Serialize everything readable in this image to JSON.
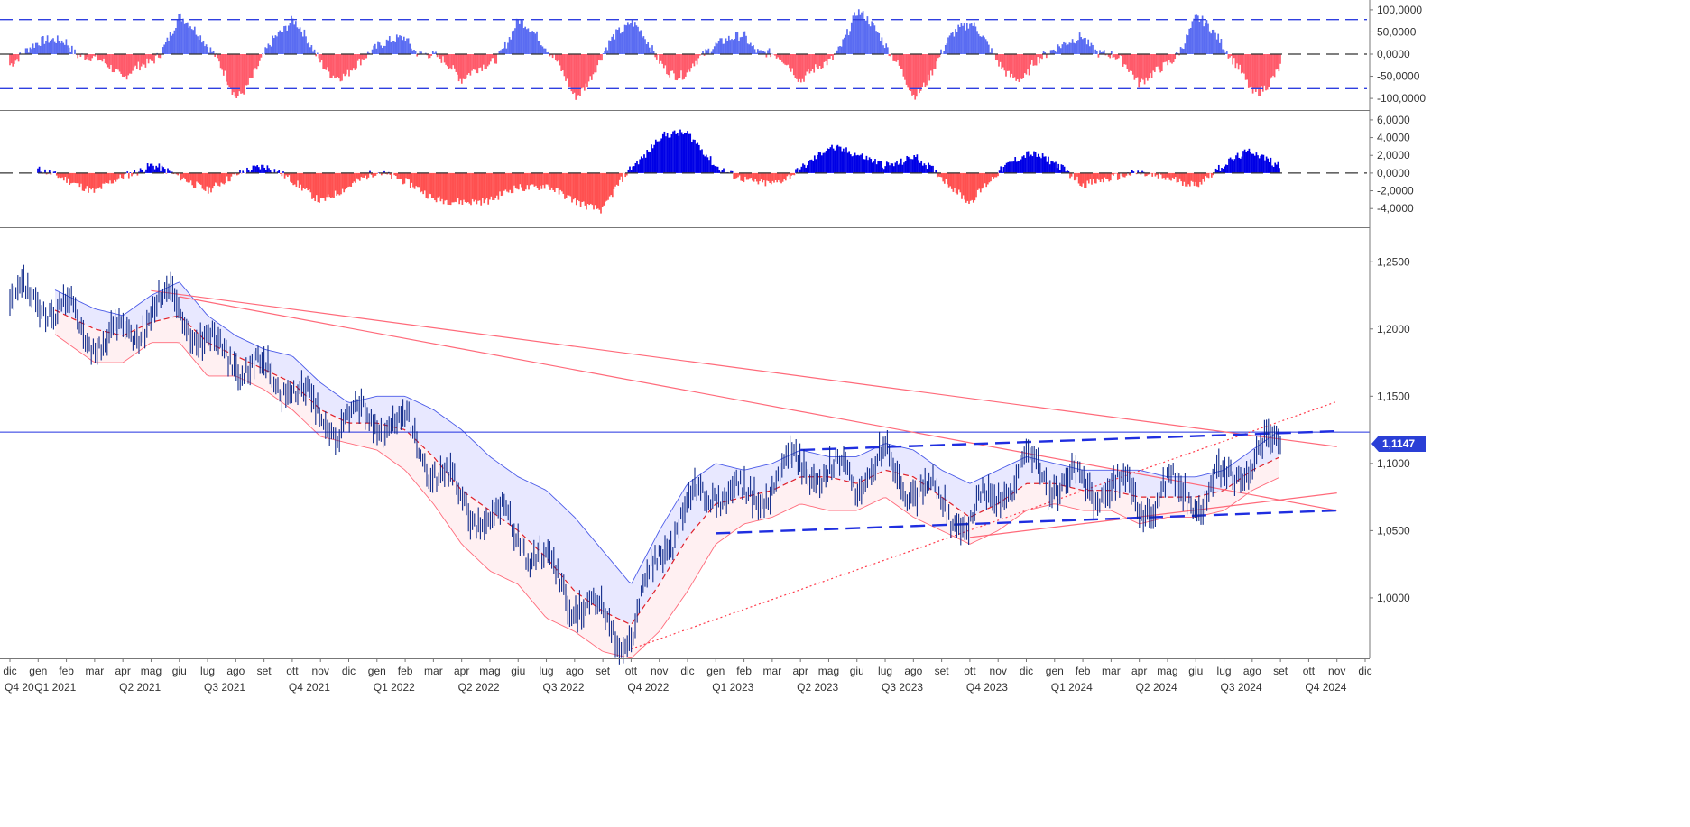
{
  "chart_data": [
    {
      "type": "area",
      "panel": "top-oscillator",
      "yticks": [
        "100,0000",
        "50,0000",
        "0,0000",
        "-50,0000",
        "-100,0000"
      ],
      "ylim": [
        -110,
        110
      ],
      "upper_band": 78,
      "lower_band": -78,
      "positive_color": "#5a6cf2",
      "negative_color": "#ff5a6a",
      "band_color": "#2f3fe0",
      "series_dates": [
        "2020-12",
        "2021-02",
        "2021-04",
        "2021-06",
        "2021-08",
        "2021-10",
        "2021-12",
        "2022-02",
        "2022-04",
        "2022-06",
        "2022-08",
        "2022-10",
        "2022-12",
        "2023-02",
        "2023-04",
        "2023-06",
        "2023-08",
        "2023-10",
        "2023-12",
        "2024-02",
        "2024-04",
        "2024-06",
        "2024-08",
        "2024-09"
      ],
      "values": [
        -45,
        60,
        -80,
        85,
        -85,
        80,
        -75,
        70,
        -80,
        75,
        -85,
        80,
        -70,
        75,
        -80,
        95,
        -85,
        85,
        -80,
        70,
        -85,
        80,
        -80,
        -35
      ]
    },
    {
      "type": "area",
      "panel": "middle-oscillator",
      "yticks": [
        "6,0000",
        "4,0000",
        "2,0000",
        "0,0000",
        "-2,0000",
        "-4,0000"
      ],
      "ylim": [
        -5.2,
        6.5
      ],
      "positive_color": "#0000e6",
      "negative_color": "#ff5050",
      "series_dates": [
        "2021-01",
        "2021-03",
        "2021-05",
        "2021-07",
        "2021-09",
        "2021-11",
        "2022-01",
        "2022-03",
        "2022-05",
        "2022-07",
        "2022-09",
        "2022-11",
        "2022-12",
        "2023-01",
        "2023-03",
        "2023-05",
        "2023-07",
        "2023-08",
        "2023-10",
        "2023-12",
        "2024-02",
        "2024-04",
        "2024-06",
        "2024-08",
        "2024-09"
      ],
      "values": [
        0,
        -2.5,
        2,
        -2,
        0.5,
        -3,
        0.8,
        -3.5,
        -4,
        -1,
        -4.5,
        5,
        4.5,
        1,
        -1.5,
        2.5,
        1,
        3,
        -3,
        3,
        -1.5,
        0.8,
        -1.5,
        2.5,
        1.2
      ]
    },
    {
      "type": "line",
      "panel": "main-price",
      "yticks": [
        "1,2500",
        "1,2000",
        "1,1500",
        "1,1000",
        "1,0500",
        "1,0000"
      ],
      "ylim": [
        0.955,
        1.275
      ],
      "last_price_label": "1,1147",
      "horizontal_level": 1.1233,
      "series_dates": [
        "2020-12",
        "2021-01",
        "2021-02",
        "2021-03",
        "2021-04",
        "2021-05",
        "2021-06",
        "2021-07",
        "2021-08",
        "2021-09",
        "2021-10",
        "2021-11",
        "2021-12",
        "2022-01",
        "2022-02",
        "2022-03",
        "2022-04",
        "2022-05",
        "2022-06",
        "2022-07",
        "2022-08",
        "2022-09",
        "2022-10",
        "2022-11",
        "2022-12",
        "2023-01",
        "2023-02",
        "2023-03",
        "2023-04",
        "2023-05",
        "2023-06",
        "2023-07",
        "2023-08",
        "2023-09",
        "2023-10",
        "2023-11",
        "2023-12",
        "2024-01",
        "2024-02",
        "2024-03",
        "2024-04",
        "2024-05",
        "2024-06",
        "2024-07",
        "2024-08",
        "2024-09"
      ],
      "price": [
        1.215,
        1.225,
        1.21,
        1.195,
        1.19,
        1.215,
        1.22,
        1.185,
        1.18,
        1.165,
        1.16,
        1.13,
        1.13,
        1.135,
        1.125,
        1.1,
        1.07,
        1.06,
        1.05,
        1.02,
        1.0,
        0.985,
        0.97,
        1.035,
        1.065,
        1.085,
        1.07,
        1.085,
        1.1,
        1.09,
        1.09,
        1.1,
        1.085,
        1.07,
        1.055,
        1.08,
        1.095,
        1.09,
        1.08,
        1.085,
        1.07,
        1.08,
        1.075,
        1.085,
        1.105,
        1.115
      ],
      "ma": [
        1.21,
        1.22,
        1.21,
        1.2,
        1.195,
        1.205,
        1.21,
        1.19,
        1.18,
        1.17,
        1.16,
        1.14,
        1.13,
        1.13,
        1.125,
        1.105,
        1.08,
        1.065,
        1.05,
        1.03,
        1.005,
        0.99,
        0.98,
        1.01,
        1.045,
        1.07,
        1.075,
        1.08,
        1.09,
        1.09,
        1.085,
        1.095,
        1.09,
        1.075,
        1.06,
        1.07,
        1.085,
        1.085,
        1.08,
        1.08,
        1.075,
        1.075,
        1.075,
        1.08,
        1.095,
        1.105
      ],
      "band_upper": [
        1.23,
        1.235,
        1.225,
        1.215,
        1.21,
        1.225,
        1.235,
        1.21,
        1.195,
        1.185,
        1.18,
        1.16,
        1.145,
        1.15,
        1.15,
        1.14,
        1.125,
        1.105,
        1.09,
        1.08,
        1.06,
        1.035,
        1.01,
        1.05,
        1.085,
        1.1,
        1.095,
        1.1,
        1.11,
        1.105,
        1.105,
        1.115,
        1.11,
        1.095,
        1.085,
        1.095,
        1.105,
        1.1,
        1.095,
        1.095,
        1.095,
        1.09,
        1.09,
        1.095,
        1.11,
        1.125
      ],
      "band_lower": [
        1.19,
        1.205,
        1.19,
        1.175,
        1.175,
        1.19,
        1.19,
        1.165,
        1.165,
        1.155,
        1.14,
        1.12,
        1.115,
        1.11,
        1.095,
        1.07,
        1.04,
        1.02,
        1.01,
        0.985,
        0.975,
        0.96,
        0.955,
        0.975,
        1.005,
        1.04,
        1.055,
        1.06,
        1.07,
        1.065,
        1.065,
        1.075,
        1.06,
        1.05,
        1.04,
        1.05,
        1.065,
        1.07,
        1.065,
        1.065,
        1.055,
        1.06,
        1.06,
        1.065,
        1.08,
        1.09
      ],
      "trendlines": [
        {
          "from": [
            "2021-05",
            1.2285
          ],
          "to": [
            "2024-11",
            1.1125
          ],
          "style": "solid",
          "color": "#ff6a7a"
        },
        {
          "from": [
            "2021-06",
            1.224
          ],
          "to": [
            "2024-11",
            1.065
          ],
          "style": "solid",
          "color": "#ff6a7a"
        },
        {
          "from": [
            "2023-10",
            1.045
          ],
          "to": [
            "2024-11",
            1.078
          ],
          "style": "solid",
          "color": "#ff6a7a"
        },
        {
          "from": [
            "2022-10",
            0.962
          ],
          "to": [
            "2024-11",
            1.146
          ],
          "style": "dotted",
          "color": "#ff3a4a"
        },
        {
          "from": [
            "2023-04",
            1.11
          ],
          "to": [
            "2024-11",
            1.124
          ],
          "style": "dashed",
          "color": "#1f2ee0"
        },
        {
          "from": [
            "2023-01",
            1.048
          ],
          "to": [
            "2024-11",
            1.065
          ],
          "style": "dashed",
          "color": "#1f2ee0"
        }
      ]
    }
  ],
  "x_axis": {
    "months": [
      "dic",
      "gen",
      "feb",
      "mar",
      "apr",
      "mag",
      "giu",
      "lug",
      "ago",
      "set",
      "ott",
      "nov",
      "dic",
      "gen",
      "feb",
      "mar",
      "apr",
      "mag",
      "giu",
      "lug",
      "ago",
      "set",
      "ott",
      "nov",
      "dic",
      "gen",
      "feb",
      "mar",
      "apr",
      "mag",
      "giu",
      "lug",
      "ago",
      "set",
      "ott",
      "nov",
      "dic",
      "gen",
      "feb",
      "mar",
      "apr",
      "mag",
      "giu",
      "lug",
      "ago",
      "set",
      "ott",
      "nov",
      "dic"
    ],
    "quarters": [
      "Q4 20",
      "Q1 2021",
      "Q2 2021",
      "Q3 2021",
      "Q4 2021",
      "Q1 2022",
      "Q2 2022",
      "Q3 2022",
      "Q4 2022",
      "Q1 2023",
      "Q2 2023",
      "Q3 2023",
      "Q4 2023",
      "Q1 2024",
      "Q2 2024",
      "Q3 2024",
      "Q4 2024"
    ]
  },
  "colors": {
    "price_bars": "#102a8a",
    "ma": "#e0202a",
    "band_upper_line": "#4a5ae8",
    "band_lower_line": "#ff6a7a",
    "band_fill_top": "#e8e8ff",
    "band_fill_bottom": "#fff0f2",
    "h_line": "#2030e0",
    "badge": "#2a3fd6"
  }
}
